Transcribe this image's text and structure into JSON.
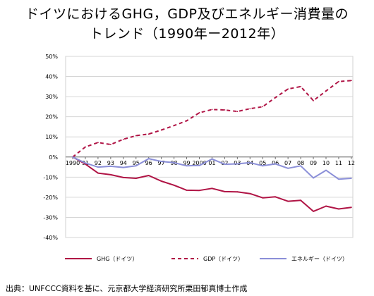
{
  "title_line1": "ドイツにおけるGHG，GDP及びエネルギー消費量の",
  "title_line2": "トレンド（1990年ー2012年）",
  "source": "出典：UNFCCC資料を基に、元京都大学経済研究所栗田郁真博士作成",
  "chart_data": {
    "type": "line",
    "title": "ドイツにおけるGHG，GDP及びエネルギー消費量のトレンド（1990年ー2012年）",
    "xlabel": "",
    "ylabel": "",
    "categories": [
      "1990",
      "91",
      "92",
      "93",
      "94",
      "95",
      "96",
      "97",
      "98",
      "99",
      "2000",
      "01",
      "02",
      "03",
      "04",
      "05",
      "06",
      "07",
      "08",
      "09",
      "10",
      "11",
      "12"
    ],
    "ylim": [
      -40,
      50
    ],
    "ytick_values": [
      50,
      40,
      30,
      20,
      10,
      0,
      -10,
      -20,
      -30,
      -40
    ],
    "ytick_labels": [
      "50%",
      "40%",
      "30%",
      "20%",
      "10%",
      "0%",
      "-10%",
      "-20%",
      "-30%",
      "-40%"
    ],
    "grid": true,
    "legend_position": "bottom",
    "series": [
      {
        "name": "GHG（ドイツ）",
        "color": "#b01445",
        "style": "solid",
        "values": [
          0,
          -3.5,
          -8,
          -8.8,
          -10.2,
          -10.6,
          -9.2,
          -12,
          -14,
          -16.5,
          -16.6,
          -15.6,
          -17.2,
          -17.3,
          -18.2,
          -20.3,
          -19.8,
          -22,
          -21.5,
          -27,
          -24.4,
          -25.8,
          -25
        ]
      },
      {
        "name": "GDP（ドイツ）",
        "color": "#b01445",
        "style": "dashed",
        "values": [
          0,
          5,
          7.2,
          6.2,
          8.8,
          10.6,
          11.4,
          13.4,
          15.6,
          18,
          22,
          23.6,
          23.4,
          22.6,
          24,
          25,
          29.5,
          33.8,
          35,
          28,
          32.8,
          37.5,
          38
        ]
      },
      {
        "name": "エネルギー（ドイツ）",
        "color": "#8b8fd8",
        "style": "solid",
        "values": [
          0,
          -3,
          -5,
          -4.6,
          -5.2,
          -4.4,
          -0.8,
          -2.2,
          -2.8,
          -4.4,
          -4.2,
          -1,
          -3.6,
          -3.4,
          -2.8,
          -4.4,
          -3.4,
          -5.6,
          -4.4,
          -10.4,
          -6.6,
          -11,
          -10.6
        ]
      }
    ]
  }
}
